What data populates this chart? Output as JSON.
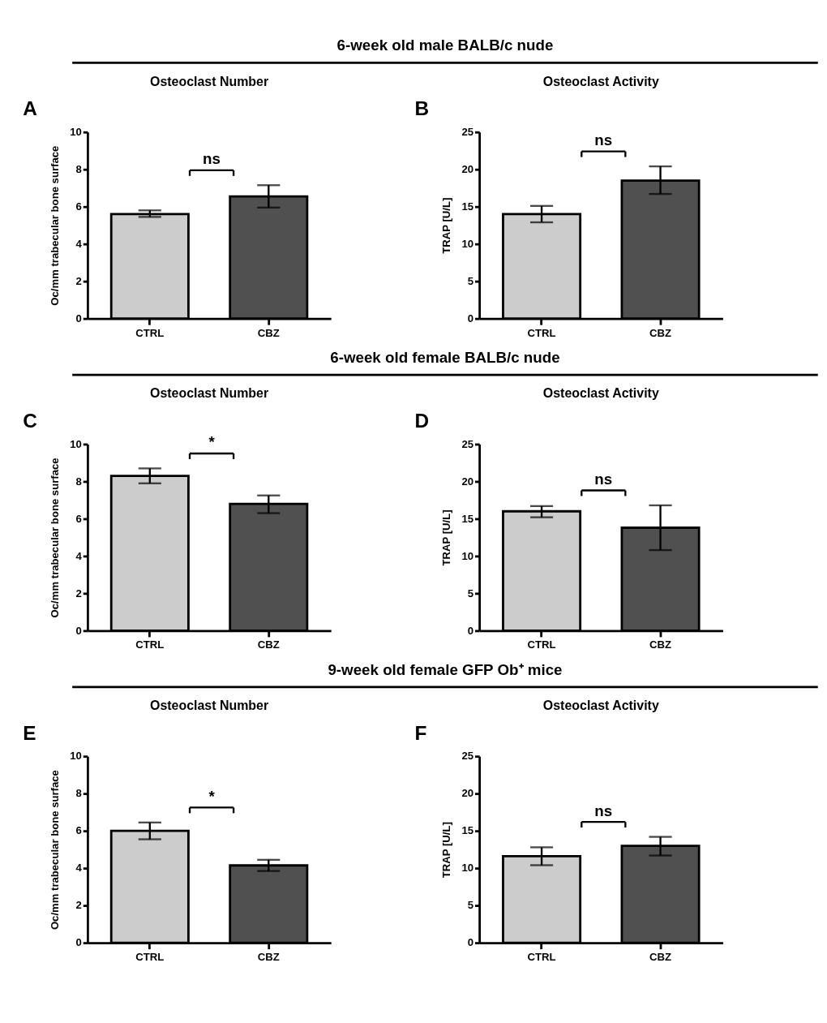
{
  "chart_data": [
    {
      "type": "bar",
      "title": "Osteoclast Number",
      "ylabel": "Oc/mm trabecular bone surface",
      "categories": [
        "CTRL",
        "CBZ"
      ],
      "values": [
        5.6,
        6.55
      ],
      "errors": [
        [
          5.45,
          5.8
        ],
        [
          5.95,
          7.15
        ]
      ],
      "colors": [
        "#cccccc",
        "#505050"
      ],
      "ylim": [
        0,
        10
      ],
      "yticks": [
        0,
        2,
        4,
        6,
        8,
        10
      ],
      "annotations": [
        "6-week old male BALB/c nude",
        "A",
        "ns"
      ]
    },
    {
      "type": "bar",
      "title": "Osteoclast Activity",
      "ylabel": "TRAP [U/L]",
      "categories": [
        "CTRL",
        "CBZ"
      ],
      "values": [
        14,
        18.5
      ],
      "errors": [
        [
          12.9,
          15.1
        ],
        [
          16.7,
          20.4
        ]
      ],
      "colors": [
        "#cccccc",
        "#505050"
      ],
      "ylim": [
        0,
        25
      ],
      "yticks": [
        0,
        5,
        10,
        15,
        20,
        25
      ],
      "annotations": [
        "B",
        "ns"
      ]
    },
    {
      "type": "bar",
      "title": "Osteoclast Number",
      "ylabel": "Oc/mm trabecular bone surface",
      "categories": [
        "CTRL",
        "CBZ"
      ],
      "values": [
        8.3,
        6.8
      ],
      "errors": [
        [
          7.9,
          8.7
        ],
        [
          6.3,
          7.25
        ]
      ],
      "colors": [
        "#cccccc",
        "#505050"
      ],
      "ylim": [
        0,
        10
      ],
      "yticks": [
        0,
        2,
        4,
        6,
        8,
        10
      ],
      "annotations": [
        "6-week old female BALB/c nude",
        "C",
        "*"
      ]
    },
    {
      "type": "bar",
      "title": "Osteoclast Activity",
      "ylabel": "TRAP [U/L]",
      "categories": [
        "CTRL",
        "CBZ"
      ],
      "values": [
        16,
        13.8
      ],
      "errors": [
        [
          15.2,
          16.7
        ],
        [
          10.8,
          16.8
        ]
      ],
      "colors": [
        "#cccccc",
        "#505050"
      ],
      "ylim": [
        0,
        25
      ],
      "yticks": [
        0,
        5,
        10,
        15,
        20,
        25
      ],
      "annotations": [
        "D",
        "ns"
      ]
    },
    {
      "type": "bar",
      "title": "Osteoclast Number",
      "ylabel": "Oc/mm trabecular bone surface",
      "categories": [
        "CTRL",
        "CBZ"
      ],
      "values": [
        6.0,
        4.15
      ],
      "errors": [
        [
          5.55,
          6.45
        ],
        [
          3.85,
          4.45
        ]
      ],
      "colors": [
        "#cccccc",
        "#505050"
      ],
      "ylim": [
        0,
        10
      ],
      "yticks": [
        0,
        2,
        4,
        6,
        8,
        10
      ],
      "annotations": [
        "9-week old female GFP Ob⁺ mice",
        "E",
        "*"
      ]
    },
    {
      "type": "bar",
      "title": "Osteoclast Activity",
      "ylabel": "TRAP [U/L]",
      "categories": [
        "CTRL",
        "CBZ"
      ],
      "values": [
        11.6,
        13.0
      ],
      "errors": [
        [
          10.4,
          12.8
        ],
        [
          11.7,
          14.2
        ]
      ],
      "colors": [
        "#cccccc",
        "#505050"
      ],
      "ylim": [
        0,
        25
      ],
      "yticks": [
        0,
        5,
        10,
        15,
        20,
        25
      ],
      "annotations": [
        "F",
        "ns"
      ]
    }
  ]
}
